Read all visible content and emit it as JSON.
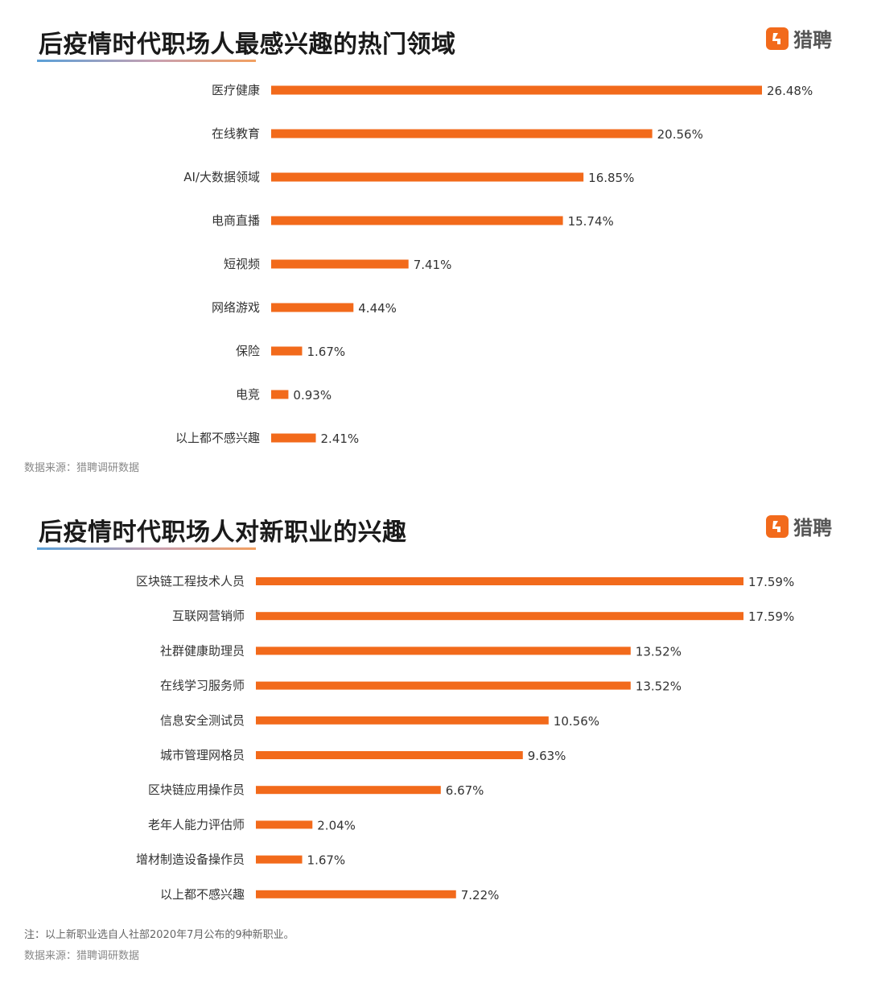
{
  "colors": {
    "bar": "#f26a1b",
    "logo": "#f26a1b"
  },
  "logo": {
    "icon": "liepin-logo-icon",
    "text": "猎聘"
  },
  "chart_data": [
    {
      "type": "bar",
      "orientation": "horizontal",
      "title": "后疫情时代职场人最感兴趣的热门领域",
      "categories": [
        "医疗健康",
        "在线教育",
        "AI/大数据领域",
        "电商直播",
        "短视频",
        "网络游戏",
        "保险",
        "电竞",
        "以上都不感兴趣"
      ],
      "values": [
        26.48,
        20.56,
        16.85,
        15.74,
        7.41,
        4.44,
        1.67,
        0.93,
        2.41
      ],
      "value_labels": [
        "26.48%",
        "20.56%",
        "16.85%",
        "15.74%",
        "7.41%",
        "4.44%",
        "1.67%",
        "0.93%",
        "2.41%"
      ],
      "unit": "%",
      "source": "数据来源：猎聘调研数据"
    },
    {
      "type": "bar",
      "orientation": "horizontal",
      "title": "后疫情时代职场人对新职业的兴趣",
      "categories": [
        "区块链工程技术人员",
        "互联网营销师",
        "社群健康助理员",
        "在线学习服务师",
        "信息安全测试员",
        "城市管理网格员",
        "区块链应用操作员",
        "老年人能力评估师",
        "增材制造设备操作员",
        "以上都不感兴趣"
      ],
      "values": [
        17.59,
        17.59,
        13.52,
        13.52,
        10.56,
        9.63,
        6.67,
        2.04,
        1.67,
        7.22
      ],
      "value_labels": [
        "17.59%",
        "17.59%",
        "13.52%",
        "13.52%",
        "10.56%",
        "9.63%",
        "6.67%",
        "2.04%",
        "1.67%",
        "7.22%"
      ],
      "unit": "%",
      "note": "注：以上新职业选自人社部2020年7月公布的9种新职业。",
      "source": "数据来源：猎聘调研数据"
    }
  ]
}
